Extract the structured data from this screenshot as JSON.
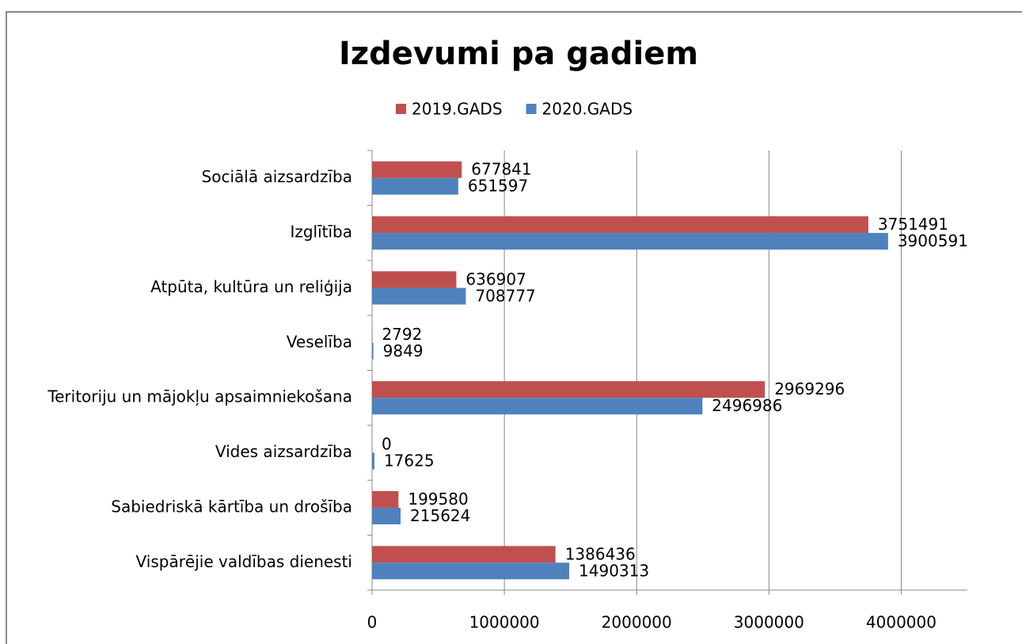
{
  "chart_data": {
    "type": "hbar",
    "title": "Izdevumi pa gadiem",
    "categories": [
      "Vispārējie valdības dienesti",
      "Sabiedriskā kārtība un drošība",
      "Vides aizsardzība",
      "Teritoriju un mājokļu apsaimniekošana",
      "Veselība",
      "Atpūta, kultūra un reliģija",
      "Izglītība",
      "Sociālā aizsardzība"
    ],
    "series": [
      {
        "name": "2019.GADS",
        "color": "#c0504d",
        "values": [
          1386436,
          199580,
          0,
          2969296,
          2792,
          636907,
          3751491,
          677841
        ]
      },
      {
        "name": "2020.GADS",
        "color": "#4f81bd",
        "values": [
          1490313,
          215624,
          17625,
          2496986,
          9849,
          708777,
          3900591,
          651597
        ]
      }
    ],
    "xlim": [
      0,
      4500000
    ],
    "xticks": [
      0,
      1000000,
      2000000,
      3000000,
      4000000
    ],
    "grid": true,
    "legend": "top"
  }
}
